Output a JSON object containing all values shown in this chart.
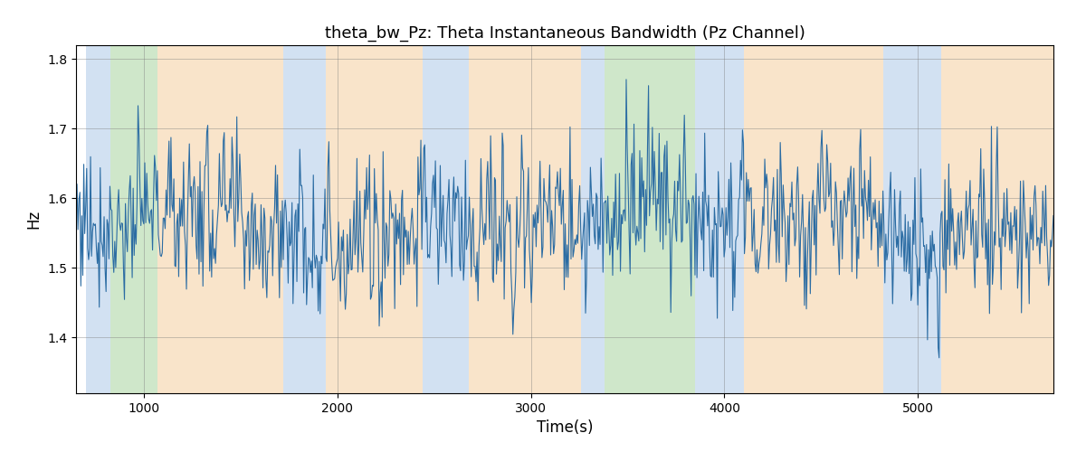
{
  "title": "theta_bw_Pz: Theta Instantaneous Bandwidth (Pz Channel)",
  "xlabel": "Time(s)",
  "ylabel": "Hz",
  "ylim": [
    1.32,
    1.82
  ],
  "xlim": [
    650,
    5700
  ],
  "yticks": [
    1.4,
    1.5,
    1.6,
    1.7,
    1.8
  ],
  "xticks": [
    1000,
    2000,
    3000,
    4000,
    5000
  ],
  "line_color": "#2b6ca3",
  "line_width": 0.8,
  "background_color": "#ffffff",
  "bands": [
    {
      "xmin": 700,
      "xmax": 830,
      "color": "#adc9e9",
      "alpha": 0.55
    },
    {
      "xmin": 830,
      "xmax": 1070,
      "color": "#a8d4a0",
      "alpha": 0.55
    },
    {
      "xmin": 1070,
      "xmax": 1720,
      "color": "#f5cfa0",
      "alpha": 0.55
    },
    {
      "xmin": 1720,
      "xmax": 1940,
      "color": "#adc9e9",
      "alpha": 0.55
    },
    {
      "xmin": 1940,
      "xmax": 2440,
      "color": "#f5cfa0",
      "alpha": 0.55
    },
    {
      "xmin": 2440,
      "xmax": 2680,
      "color": "#adc9e9",
      "alpha": 0.55
    },
    {
      "xmin": 2680,
      "xmax": 3260,
      "color": "#f5cfa0",
      "alpha": 0.55
    },
    {
      "xmin": 3260,
      "xmax": 3380,
      "color": "#adc9e9",
      "alpha": 0.55
    },
    {
      "xmin": 3380,
      "xmax": 3850,
      "color": "#a8d4a0",
      "alpha": 0.55
    },
    {
      "xmin": 3850,
      "xmax": 4100,
      "color": "#adc9e9",
      "alpha": 0.55
    },
    {
      "xmin": 4100,
      "xmax": 4820,
      "color": "#f5cfa0",
      "alpha": 0.55
    },
    {
      "xmin": 4820,
      "xmax": 5120,
      "color": "#adc9e9",
      "alpha": 0.55
    },
    {
      "xmin": 5120,
      "xmax": 5700,
      "color": "#f5cfa0",
      "alpha": 0.55
    }
  ],
  "seed": 77,
  "n_points": 1010,
  "t_start": 650,
  "t_end": 5700,
  "base_mean": 1.565,
  "base_std": 0.068
}
